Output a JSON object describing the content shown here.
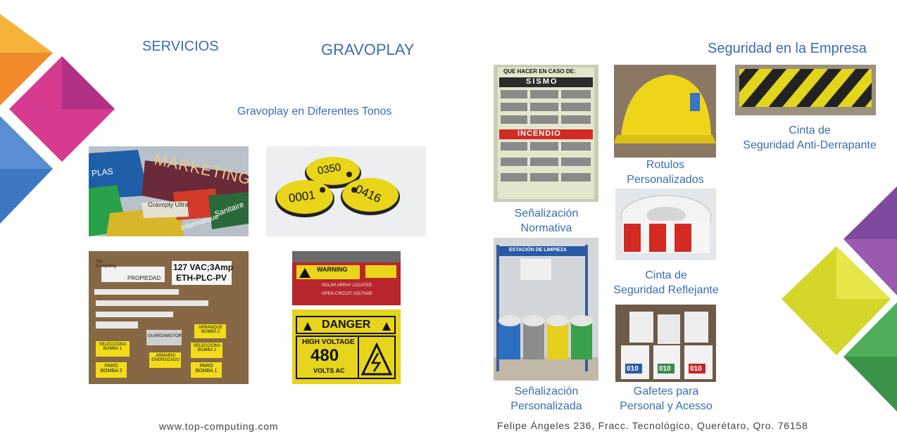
{
  "left": {
    "servicios": "SERVICIOS",
    "gravoplay": "GRAVOPLAY",
    "subtitle": "Gravoplay en Diferentes Tonos",
    "photos": {
      "nameplates": {
        "word1": "MARKETING",
        "word2": "Gravoply Ultra",
        "word3": "PLAS",
        "word4": "Sanitaire",
        "word5": "Informatique"
      },
      "discs": {
        "n1": "0350",
        "n2": "0001",
        "n3": "0416"
      },
      "labels": {
        "l1": "127 VAC;3Amp",
        "l2": "ETH-PLC-PV",
        "l3": "PROPIEDAD",
        "l4": "ARRANQUE BOMBA 2",
        "l5": "SELECCIONA BOMBA 1",
        "l6": "PARO BOMBA 2",
        "l7": "ARMARIO ENERGIZADO",
        "l8": "SELECCIONA BOMBA 2",
        "l9": "PARO BOMBA 1",
        "l10": "GUARDAMOTOR",
        "brand": "Top Computing"
      },
      "warning": {
        "w1": "WARNING",
        "w2": "SOLAR ARRAY LOCATED",
        "w3": "OPEN CIRCUIT VOLTAGE"
      },
      "danger": {
        "d1": "DANGER",
        "d2": "HIGH VOLTAGE",
        "d3": "480",
        "d4": "VOLTS AC"
      }
    },
    "website": "www.top-computing.com"
  },
  "right": {
    "title": "Seguridad en la Empresa",
    "poster": {
      "top": "QUE HACER EN CASO DE:",
      "sismo": "SISMO",
      "incendio": "INCENDIO"
    },
    "station": {
      "label": "ESTACIÓN DE LIMPIEZA"
    },
    "badges": {
      "num": "010"
    },
    "captions": {
      "senal_normativa": [
        "Señalización",
        "Normativa"
      ],
      "senal_personalizada": [
        "Señalización",
        "Personalizada"
      ],
      "rotulos": [
        "Rotulos",
        "Personalizados"
      ],
      "cinta_reflejante": [
        "Cinta de",
        "Seguridad Reflejante"
      ],
      "gafetes": [
        "Gafetes para",
        "Personal y Acesso"
      ],
      "cinta_anti": [
        "Cinta de",
        "Seguridad Anti-Derrapante"
      ]
    },
    "address": "Felipe Ángeles 236, Fracc. Tecnológico, Querétaro, Qro. 76158"
  }
}
